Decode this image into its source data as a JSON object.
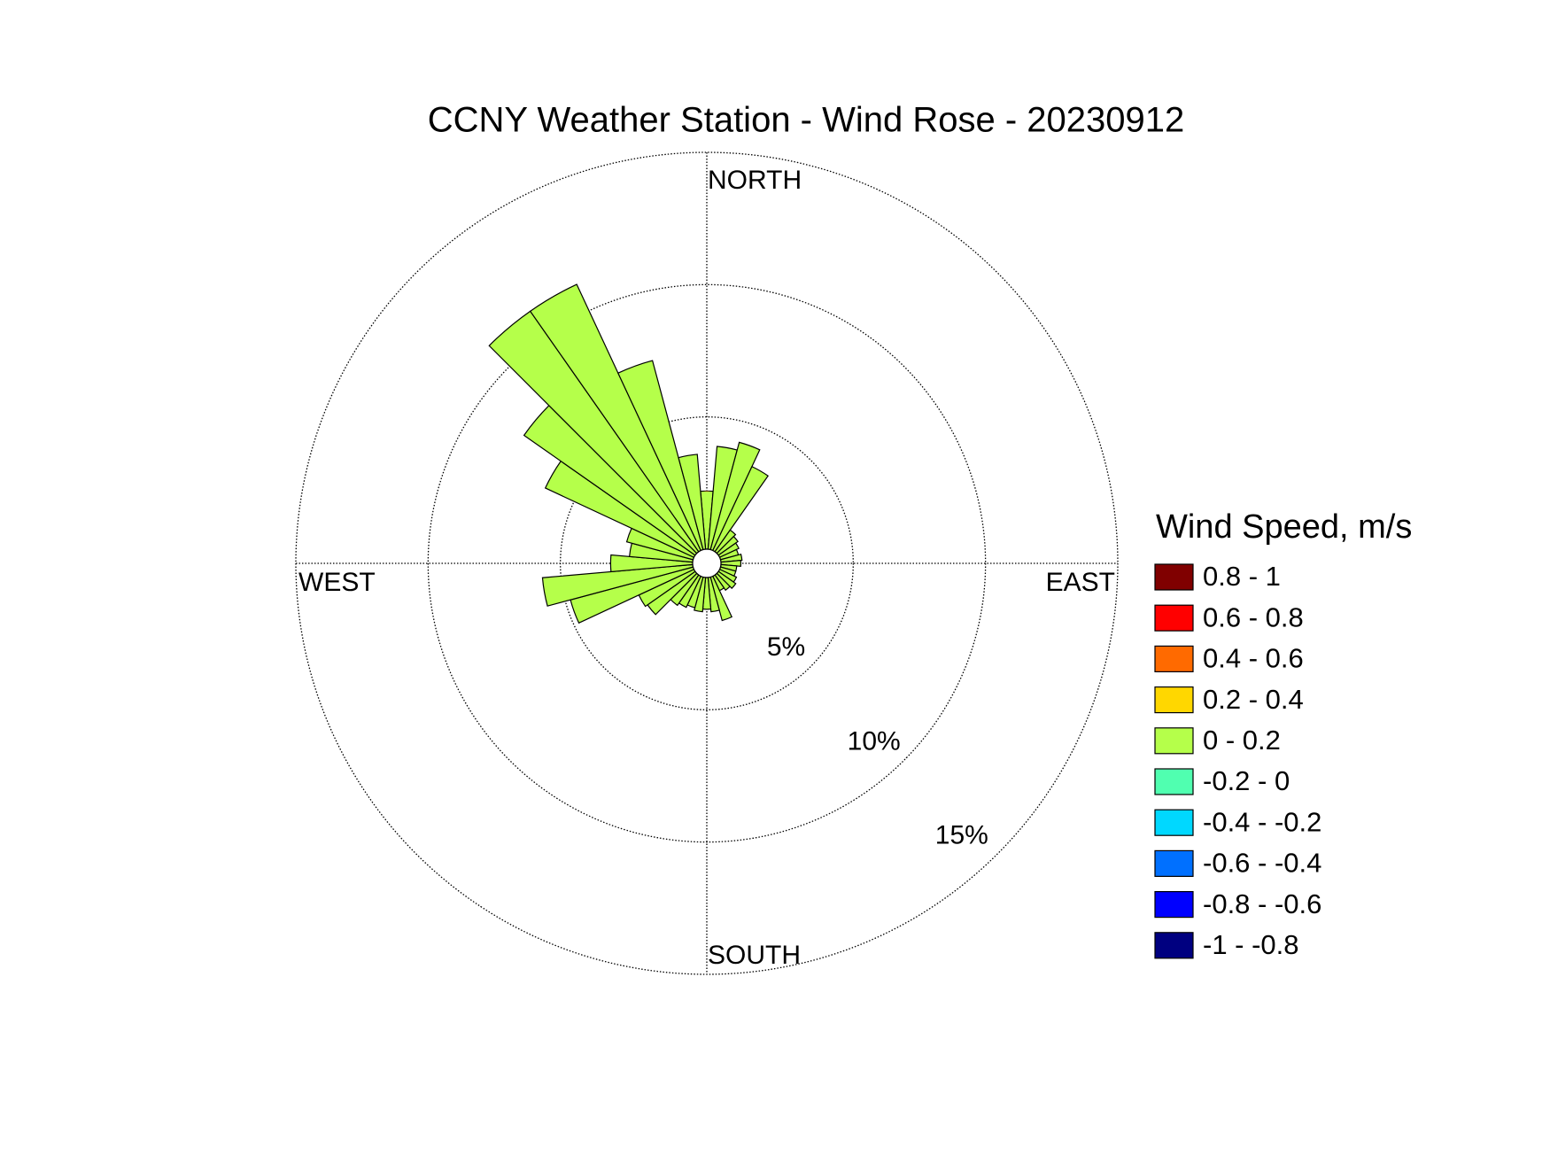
{
  "chart_data": {
    "type": "windrose",
    "title": "CCNY Weather Station - Wind Rose - 20230912",
    "direction_labels": [
      "NORTH",
      "EAST",
      "SOUTH",
      "WEST"
    ],
    "directions": [
      0,
      10,
      20,
      30,
      40,
      50,
      60,
      70,
      80,
      90,
      100,
      110,
      120,
      130,
      140,
      150,
      160,
      170,
      180,
      190,
      200,
      210,
      220,
      230,
      240,
      250,
      260,
      270,
      280,
      290,
      300,
      310,
      320,
      330,
      340,
      350
    ],
    "rlim": [
      0,
      15
    ],
    "rticks": [
      {
        "value": 5,
        "label": "5%"
      },
      {
        "value": 10,
        "label": "10%"
      },
      {
        "value": 15,
        "label": "15%"
      }
    ],
    "legend_title": "Wind Speed, m/s",
    "series": [
      {
        "name": "0.8 - 1",
        "color": "#800000",
        "values": [
          0,
          0,
          0,
          0,
          0,
          0,
          0,
          0,
          0,
          0,
          0,
          0,
          0,
          0,
          0,
          0,
          0,
          0,
          0,
          0,
          0,
          0,
          0,
          0,
          0,
          0,
          0,
          0,
          0,
          0,
          0,
          0,
          0,
          0,
          0,
          0
        ]
      },
      {
        "name": "0.6 - 0.8",
        "color": "#ff0000",
        "values": [
          0,
          0,
          0,
          0,
          0,
          0,
          0,
          0,
          0,
          0,
          0,
          0,
          0,
          0,
          0,
          0,
          0,
          0,
          0,
          0,
          0,
          0,
          0,
          0,
          0,
          0,
          0,
          0,
          0,
          0,
          0,
          0,
          0,
          0,
          0,
          0
        ]
      },
      {
        "name": "0.4 - 0.6",
        "color": "#ff6a00",
        "values": [
          0,
          0,
          0,
          0,
          0,
          0,
          0,
          0,
          0,
          0,
          0,
          0,
          0,
          0,
          0,
          0,
          0,
          0,
          0,
          0,
          0,
          0,
          0,
          0,
          0,
          0,
          0,
          0,
          0,
          0,
          0,
          0,
          0,
          0,
          0,
          0
        ]
      },
      {
        "name": "0.2 - 0.4",
        "color": "#ffd700",
        "values": [
          0,
          0,
          0,
          0,
          0,
          0,
          0,
          0,
          0,
          0,
          0,
          0,
          0,
          0,
          0,
          0,
          0,
          0,
          0,
          0,
          0,
          0,
          0,
          0,
          0,
          0,
          0,
          0,
          0,
          0,
          0,
          0,
          0,
          0,
          0,
          0
        ]
      },
      {
        "name": "0 - 0.2",
        "color": "#b5ff4a",
        "values": [
          2.2,
          3.9,
          4.2,
          3.5,
          1.0,
          0.9,
          0.8,
          0.7,
          0.8,
          0.75,
          0.6,
          0.6,
          0.7,
          0.8,
          0.7,
          0.6,
          1.7,
          1.3,
          1.2,
          1.3,
          1.2,
          1.3,
          1.4,
          2.2,
          2.3,
          4.8,
          5.7,
          3.1,
          2.4,
          2.6,
          6.2,
          7.9,
          11.1,
          11.1,
          7.4,
          3.6
        ]
      },
      {
        "name": "-0.2 - 0",
        "color": "#50ffb0",
        "values": [
          0,
          0,
          0,
          0,
          0,
          0,
          0,
          0,
          0,
          0,
          0,
          0,
          0,
          0,
          0,
          0,
          0,
          0,
          0,
          0,
          0,
          0,
          0,
          0,
          0,
          0,
          0,
          0,
          0,
          0,
          0,
          0,
          0,
          0,
          0,
          0
        ]
      },
      {
        "name": "-0.4 - -0.2",
        "color": "#00d8ff",
        "values": [
          0,
          0,
          0,
          0,
          0,
          0,
          0,
          0,
          0,
          0,
          0,
          0,
          0,
          0,
          0,
          0,
          0,
          0,
          0,
          0,
          0,
          0,
          0,
          0,
          0,
          0,
          0,
          0,
          0,
          0,
          0,
          0,
          0,
          0,
          0,
          0
        ]
      },
      {
        "name": "-0.6 - -0.4",
        "color": "#0070ff",
        "values": [
          0,
          0,
          0,
          0,
          0,
          0,
          0,
          0,
          0,
          0,
          0,
          0,
          0,
          0,
          0,
          0,
          0,
          0,
          0,
          0,
          0,
          0,
          0,
          0,
          0,
          0,
          0,
          0,
          0,
          0,
          0,
          0,
          0,
          0,
          0,
          0
        ]
      },
      {
        "name": "-0.8 - -0.6",
        "color": "#0000ff",
        "values": [
          0,
          0,
          0,
          0,
          0,
          0,
          0,
          0,
          0,
          0,
          0,
          0,
          0,
          0,
          0,
          0,
          0,
          0,
          0,
          0,
          0,
          0,
          0,
          0,
          0,
          0,
          0,
          0,
          0,
          0,
          0,
          0,
          0,
          0,
          0,
          0
        ]
      },
      {
        "name": "-1 - -0.8",
        "color": "#000080",
        "values": [
          0,
          0,
          0,
          0,
          0,
          0,
          0,
          0,
          0,
          0,
          0,
          0,
          0,
          0,
          0,
          0,
          0,
          0,
          0,
          0,
          0,
          0,
          0,
          0,
          0,
          0,
          0,
          0,
          0,
          0,
          0,
          0,
          0,
          0,
          0,
          0
        ]
      }
    ]
  }
}
